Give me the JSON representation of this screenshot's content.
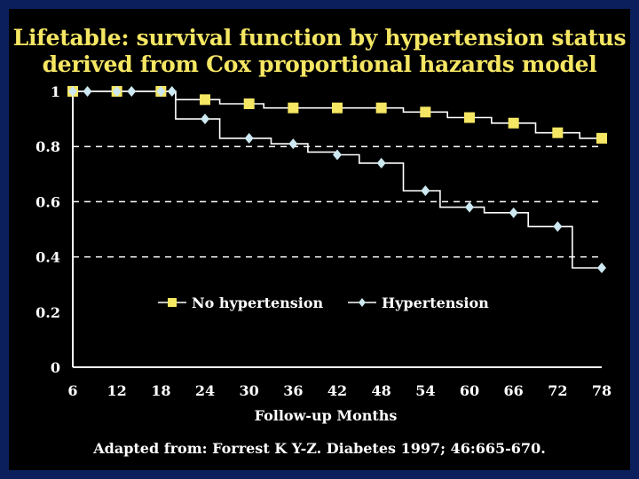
{
  "title_line1": "Lifetable: survival function by hypertension status",
  "title_line2": "derived from Cox proportional hazards model",
  "source": "Adapted from: Forrest K Y-Z. Diabetes 1997; 46:665-670.",
  "colors": {
    "background": "#0a1f5c",
    "panel": "#000000",
    "title": "#f5e663",
    "no_hypertension": "#f5e663",
    "hypertension": "#cde8f0",
    "text": "#ffffff"
  },
  "chart_data": {
    "type": "line",
    "step": true,
    "xlabel": "Follow-up Months",
    "ylabel": "",
    "xlim": [
      6,
      78
    ],
    "ylim": [
      0,
      1
    ],
    "x_ticks": [
      "6",
      "12",
      "18",
      "24",
      "30",
      "36",
      "42",
      "48",
      "54",
      "60",
      "66",
      "72",
      "78"
    ],
    "y_ticks": [
      "0",
      "0.2",
      "0.4",
      "0.6",
      "0.8",
      "1"
    ],
    "dashed_gridlines_y": [
      0.4,
      0.6,
      0.8
    ],
    "legend_position": "center-left",
    "series": [
      {
        "name": "No hypertension",
        "marker": "square",
        "color": "#f5e663",
        "points": [
          [
            6,
            1
          ],
          [
            12,
            1
          ],
          [
            18,
            1
          ],
          [
            24,
            0.97
          ],
          [
            30,
            0.955
          ],
          [
            36,
            0.94
          ],
          [
            42,
            0.94
          ],
          [
            48,
            0.94
          ],
          [
            54,
            0.925
          ],
          [
            60,
            0.905
          ],
          [
            66,
            0.885
          ],
          [
            72,
            0.85
          ],
          [
            78,
            0.83
          ]
        ],
        "steps": [
          [
            6,
            1
          ],
          [
            20,
            1
          ],
          [
            20,
            0.97
          ],
          [
            26,
            0.97
          ],
          [
            26,
            0.955
          ],
          [
            32,
            0.955
          ],
          [
            32,
            0.94
          ],
          [
            51,
            0.94
          ],
          [
            51,
            0.925
          ],
          [
            57,
            0.925
          ],
          [
            57,
            0.905
          ],
          [
            63,
            0.905
          ],
          [
            63,
            0.885
          ],
          [
            69,
            0.885
          ],
          [
            69,
            0.85
          ],
          [
            75,
            0.85
          ],
          [
            75,
            0.83
          ],
          [
            78,
            0.83
          ]
        ]
      },
      {
        "name": "Hypertension",
        "marker": "diamond",
        "color": "#cde8f0",
        "points": [
          [
            6,
            1
          ],
          [
            8,
            1
          ],
          [
            12,
            1
          ],
          [
            14,
            1
          ],
          [
            18,
            1
          ],
          [
            19.5,
            1
          ],
          [
            24,
            0.9
          ],
          [
            30,
            0.83
          ],
          [
            36,
            0.81
          ],
          [
            42,
            0.77
          ],
          [
            48,
            0.74
          ],
          [
            54,
            0.64
          ],
          [
            60,
            0.58
          ],
          [
            66,
            0.56
          ],
          [
            72,
            0.51
          ],
          [
            78,
            0.36
          ]
        ],
        "steps": [
          [
            6,
            1
          ],
          [
            20,
            1
          ],
          [
            20,
            0.9
          ],
          [
            26,
            0.9
          ],
          [
            26,
            0.83
          ],
          [
            33,
            0.83
          ],
          [
            33,
            0.81
          ],
          [
            38,
            0.81
          ],
          [
            38,
            0.78
          ],
          [
            42,
            0.78
          ],
          [
            42,
            0.77
          ],
          [
            45,
            0.77
          ],
          [
            45,
            0.74
          ],
          [
            51,
            0.74
          ],
          [
            51,
            0.64
          ],
          [
            56,
            0.64
          ],
          [
            56,
            0.58
          ],
          [
            62,
            0.58
          ],
          [
            62,
            0.56
          ],
          [
            68,
            0.56
          ],
          [
            68,
            0.51
          ],
          [
            74,
            0.51
          ],
          [
            74,
            0.36
          ],
          [
            78,
            0.36
          ]
        ]
      }
    ]
  }
}
